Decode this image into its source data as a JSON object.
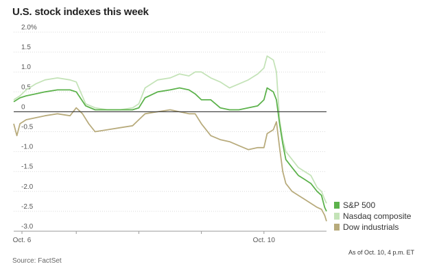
{
  "chart_data": {
    "type": "line",
    "title": "U.S. stock indexes this week",
    "xlabel": "",
    "ylabel": "",
    "ylim": [
      -3.0,
      2.0
    ],
    "yticks": [
      2.0,
      1.5,
      1.0,
      0.5,
      0,
      -0.5,
      -1.0,
      -1.5,
      -2.0,
      -2.5,
      -3.0
    ],
    "ytick_labels": [
      "2.0%",
      "1.5",
      "1.0",
      "0.5",
      "0",
      "-0.5",
      "-1.0",
      "-1.5",
      "-2.0",
      "-2.5",
      "-3.0"
    ],
    "xlim": [
      0,
      5
    ],
    "xticks": [
      {
        "x": 0,
        "label": "Oct. 6"
      },
      {
        "x": 1,
        "label": ""
      },
      {
        "x": 2,
        "label": ""
      },
      {
        "x": 3,
        "label": ""
      },
      {
        "x": 4,
        "label": "Oct. 10"
      }
    ],
    "legend_position": "bottom-right",
    "series": [
      {
        "name": "S&P 500",
        "color": "#5cb24b",
        "points": [
          [
            0,
            0.25
          ],
          [
            0.1,
            0.35
          ],
          [
            0.2,
            0.4
          ],
          [
            0.35,
            0.45
          ],
          [
            0.5,
            0.5
          ],
          [
            0.7,
            0.55
          ],
          [
            0.9,
            0.55
          ],
          [
            1.0,
            0.5
          ],
          [
            1.15,
            0.15
          ],
          [
            1.3,
            0.05
          ],
          [
            1.5,
            0.05
          ],
          [
            1.7,
            0.05
          ],
          [
            1.9,
            0.05
          ],
          [
            2.0,
            0.1
          ],
          [
            2.1,
            0.35
          ],
          [
            2.3,
            0.5
          ],
          [
            2.5,
            0.55
          ],
          [
            2.65,
            0.6
          ],
          [
            2.8,
            0.55
          ],
          [
            2.9,
            0.45
          ],
          [
            3.0,
            0.3
          ],
          [
            3.15,
            0.3
          ],
          [
            3.3,
            0.1
          ],
          [
            3.45,
            0.05
          ],
          [
            3.6,
            0.05
          ],
          [
            3.75,
            0.1
          ],
          [
            3.9,
            0.15
          ],
          [
            4.0,
            0.3
          ],
          [
            4.05,
            0.6
          ],
          [
            4.1,
            0.55
          ],
          [
            4.15,
            0.5
          ],
          [
            4.2,
            0.3
          ],
          [
            4.25,
            -0.3
          ],
          [
            4.3,
            -0.8
          ],
          [
            4.35,
            -1.2
          ],
          [
            4.45,
            -1.4
          ],
          [
            4.55,
            -1.6
          ],
          [
            4.65,
            -1.7
          ],
          [
            4.75,
            -1.8
          ],
          [
            4.85,
            -2.0
          ],
          [
            4.92,
            -2.1
          ],
          [
            4.97,
            -2.4
          ],
          [
            5.0,
            -2.5
          ]
        ]
      },
      {
        "name": "Nasdaq composite",
        "color": "#c4e3b8",
        "points": [
          [
            0,
            0.3
          ],
          [
            0.1,
            0.4
          ],
          [
            0.2,
            0.55
          ],
          [
            0.35,
            0.7
          ],
          [
            0.5,
            0.8
          ],
          [
            0.7,
            0.85
          ],
          [
            0.9,
            0.8
          ],
          [
            1.0,
            0.75
          ],
          [
            1.15,
            0.2
          ],
          [
            1.3,
            0.1
          ],
          [
            1.5,
            0.05
          ],
          [
            1.7,
            0.05
          ],
          [
            1.9,
            0.1
          ],
          [
            2.0,
            0.2
          ],
          [
            2.1,
            0.6
          ],
          [
            2.3,
            0.8
          ],
          [
            2.5,
            0.85
          ],
          [
            2.65,
            0.95
          ],
          [
            2.8,
            0.9
          ],
          [
            2.9,
            1.0
          ],
          [
            3.0,
            1.0
          ],
          [
            3.15,
            0.85
          ],
          [
            3.3,
            0.75
          ],
          [
            3.45,
            0.6
          ],
          [
            3.6,
            0.7
          ],
          [
            3.75,
            0.8
          ],
          [
            3.9,
            0.95
          ],
          [
            4.0,
            1.1
          ],
          [
            4.05,
            1.4
          ],
          [
            4.1,
            1.35
          ],
          [
            4.15,
            1.3
          ],
          [
            4.2,
            1.0
          ],
          [
            4.25,
            -0.2
          ],
          [
            4.3,
            -0.7
          ],
          [
            4.35,
            -1.0
          ],
          [
            4.45,
            -1.2
          ],
          [
            4.55,
            -1.4
          ],
          [
            4.65,
            -1.5
          ],
          [
            4.75,
            -1.6
          ],
          [
            4.85,
            -1.9
          ],
          [
            4.92,
            -2.0
          ],
          [
            4.97,
            -2.2
          ],
          [
            5.0,
            -2.3
          ]
        ]
      },
      {
        "name": "Dow industrials",
        "color": "#b8ab7c",
        "points": [
          [
            0,
            -0.3
          ],
          [
            0.05,
            -0.6
          ],
          [
            0.1,
            -0.3
          ],
          [
            0.2,
            -0.2
          ],
          [
            0.35,
            -0.15
          ],
          [
            0.5,
            -0.1
          ],
          [
            0.7,
            -0.05
          ],
          [
            0.9,
            -0.1
          ],
          [
            1.0,
            0.1
          ],
          [
            1.1,
            -0.05
          ],
          [
            1.2,
            -0.3
          ],
          [
            1.3,
            -0.5
          ],
          [
            1.5,
            -0.45
          ],
          [
            1.7,
            -0.4
          ],
          [
            1.9,
            -0.35
          ],
          [
            2.0,
            -0.2
          ],
          [
            2.1,
            -0.05
          ],
          [
            2.3,
            0.0
          ],
          [
            2.5,
            0.05
          ],
          [
            2.65,
            0.0
          ],
          [
            2.8,
            -0.05
          ],
          [
            2.9,
            -0.05
          ],
          [
            3.0,
            -0.3
          ],
          [
            3.15,
            -0.6
          ],
          [
            3.3,
            -0.7
          ],
          [
            3.45,
            -0.75
          ],
          [
            3.6,
            -0.85
          ],
          [
            3.75,
            -0.95
          ],
          [
            3.9,
            -0.9
          ],
          [
            4.0,
            -0.9
          ],
          [
            4.05,
            -0.55
          ],
          [
            4.1,
            -0.5
          ],
          [
            4.15,
            -0.45
          ],
          [
            4.2,
            -0.25
          ],
          [
            4.25,
            -0.9
          ],
          [
            4.3,
            -1.5
          ],
          [
            4.35,
            -1.8
          ],
          [
            4.45,
            -2.0
          ],
          [
            4.55,
            -2.1
          ],
          [
            4.65,
            -2.2
          ],
          [
            4.75,
            -2.3
          ],
          [
            4.85,
            -2.4
          ],
          [
            4.92,
            -2.45
          ],
          [
            4.97,
            -2.6
          ],
          [
            5.0,
            -2.75
          ]
        ]
      }
    ]
  },
  "footer": {
    "as_of": "As of Oct. 10, 4 p.m. ET",
    "source": "Source: FactSet"
  }
}
